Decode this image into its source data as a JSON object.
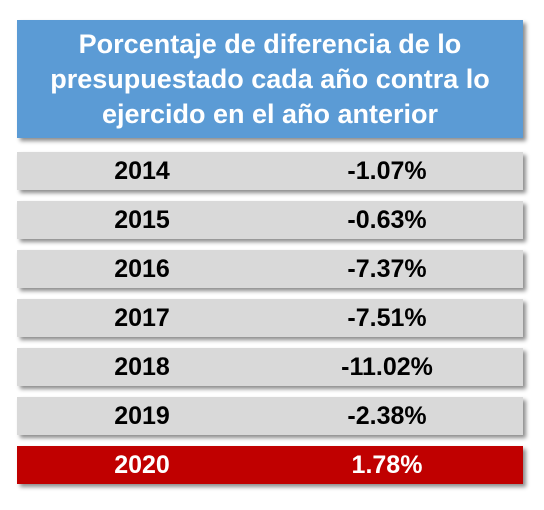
{
  "chart_data": {
    "type": "table",
    "title": "Porcentaje de diferencia de lo presupuestado cada año contra lo ejercido en el año anterior",
    "rows": [
      {
        "year": "2014",
        "value": "-1.07%"
      },
      {
        "year": "2015",
        "value": "-0.63%"
      },
      {
        "year": "2016",
        "value": "-7.37%"
      },
      {
        "year": "2017",
        "value": "-7.51%"
      },
      {
        "year": "2018",
        "value": "-11.02%"
      },
      {
        "year": "2019",
        "value": "-2.38%"
      },
      {
        "year": "2020",
        "value": "1.78%"
      }
    ],
    "highlight_row": "2020"
  },
  "colors": {
    "header_bg": "#5b9bd5",
    "row_bg": "#d9d9d9",
    "highlight_bg": "#c00000"
  }
}
